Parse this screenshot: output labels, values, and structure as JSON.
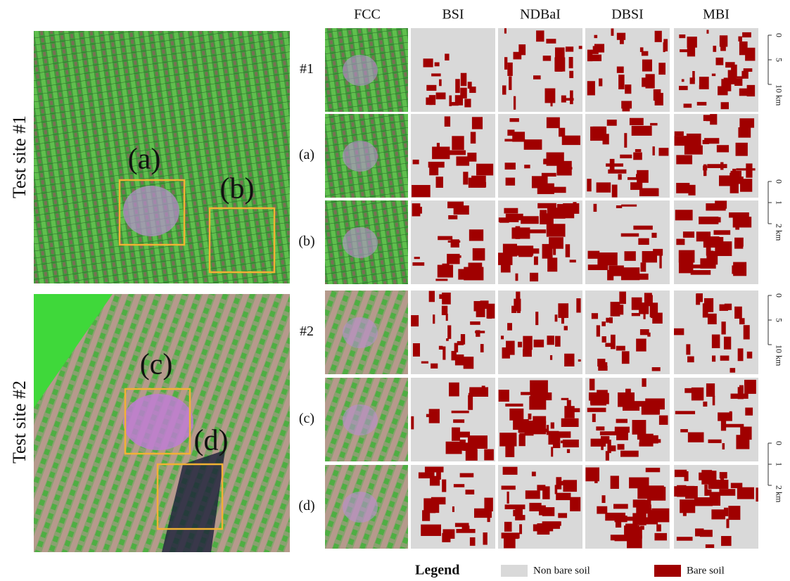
{
  "columns": [
    "FCC",
    "BSI",
    "NDBaI",
    "DBSI",
    "MBI"
  ],
  "rows": [
    "#1",
    "(a)",
    "(b)",
    "#2",
    "(c)",
    "(d)"
  ],
  "sites": [
    {
      "label": "Test site #1",
      "boxes": [
        "(a)",
        "(b)"
      ]
    },
    {
      "label": "Test site #2",
      "boxes": [
        "(c)",
        "(d)"
      ]
    }
  ],
  "scale_bars": [
    {
      "ticks": [
        "0",
        "5",
        "10 km"
      ]
    },
    {
      "ticks": [
        "0",
        "1",
        "2 km"
      ]
    },
    {
      "ticks": [
        "0",
        "5",
        "10 km"
      ]
    },
    {
      "ticks": [
        "0",
        "1",
        "2 km"
      ]
    }
  ],
  "legend": {
    "title": "Legend",
    "items": [
      {
        "label": "Non bare soil",
        "color": "#d9d9d9"
      },
      {
        "label": "Bare soil",
        "color": "#a00000"
      }
    ]
  }
}
